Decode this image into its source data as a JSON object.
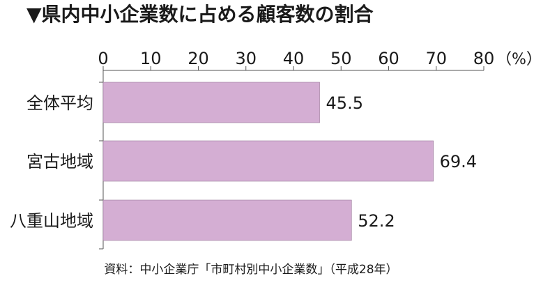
{
  "chart_data": {
    "type": "bar",
    "orientation": "horizontal",
    "title": "▼県内中小企業数に占める顧客数の割合",
    "unit": "（%）",
    "categories": [
      "全体平均",
      "宮古地域",
      "八重山地域"
    ],
    "values": [
      45.5,
      69.4,
      52.2
    ],
    "value_labels": [
      "45.5",
      "69.4",
      "52.2"
    ],
    "xlim": [
      0,
      80
    ],
    "ticks": [
      0,
      10,
      20,
      30,
      40,
      50,
      60,
      70,
      80
    ],
    "tick_labels": [
      "0",
      "10",
      "20",
      "30",
      "40",
      "50",
      "60",
      "70",
      "80"
    ],
    "grid": false,
    "axis_position": "top",
    "bar_color": "#d4aed3",
    "bar_stroke": "#9a7a99",
    "source": "資料：中小企業庁「市町村別中小企業数」（平成28年）"
  }
}
